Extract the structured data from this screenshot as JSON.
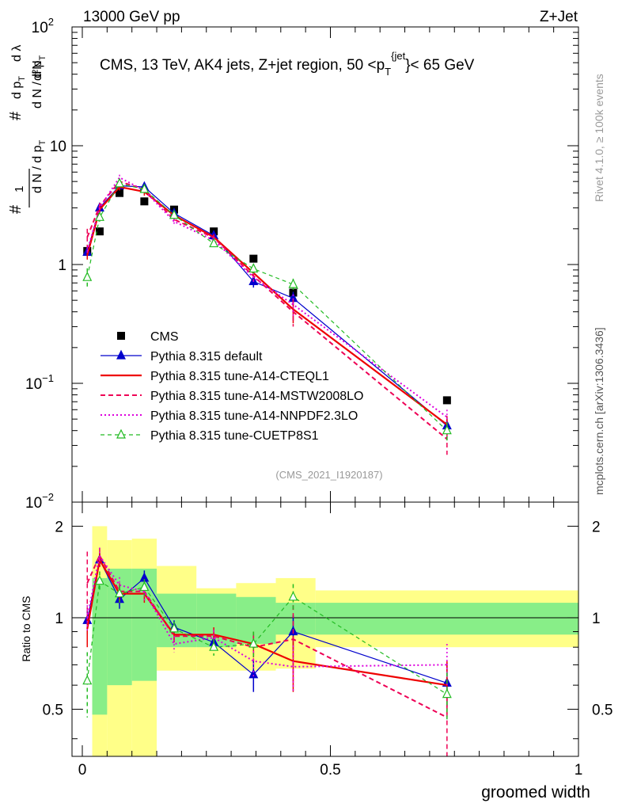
{
  "header": {
    "left": "13000 GeV pp",
    "right": "Z+Jet"
  },
  "side": {
    "rivet": "Rivet 4.1.0, ≥ 100k events",
    "mcplots": "mcplots.cern.ch [arXiv:1306.3436]"
  },
  "chart_data": [
    {
      "type": "line",
      "yscale": "log",
      "title": "CMS, 13 TeV, AK4 jets, Z+jet region, 50 <p_T^{jet}< 65 GeV",
      "watermark": "(CMS_2021_I1920187)",
      "ylabel": "1/dN/dp_T dN/dp_T dlambda",
      "xlim": [
        0,
        1
      ],
      "ylim": [
        0.01,
        100
      ],
      "ytick_labels": [
        "10^{-2}",
        "10^{-1}",
        "1",
        "10",
        "10^{2}"
      ],
      "x": [
        0.01,
        0.035,
        0.075,
        0.125,
        0.185,
        0.265,
        0.345,
        0.425,
        0.735
      ],
      "series": [
        {
          "name": "CMS",
          "color": "#000000",
          "values": [
            1.3,
            1.9,
            4.0,
            3.4,
            2.9,
            1.9,
            1.12,
            0.58,
            0.072
          ]
        },
        {
          "name": "Pythia 8.315 default",
          "color": "#0000cc",
          "values": [
            1.27,
            3.0,
            4.6,
            4.5,
            2.7,
            1.75,
            0.72,
            0.52,
            0.044
          ],
          "errors": [
            0.1,
            0.2,
            0.3,
            0.3,
            0.15,
            0.1,
            0.08,
            0.07,
            0.007
          ]
        },
        {
          "name": "Pythia 8.315 tune-A14-CTEQL1",
          "color": "#ee0000",
          "values": [
            1.2,
            2.9,
            4.5,
            4.1,
            2.6,
            1.7,
            0.85,
            0.42,
            0.045
          ],
          "errors": [
            0.1,
            0.2,
            0.3,
            0.3,
            0.15,
            0.1,
            0.08,
            0.1,
            0.008
          ]
        },
        {
          "name": "Pythia 8.315 tune-A14-MSTW2008LO",
          "color": "#ee0055",
          "values": [
            1.7,
            3.1,
            5.0,
            4.3,
            2.4,
            1.68,
            0.8,
            0.4,
            0.034
          ],
          "errors": [
            0.3,
            0.2,
            0.3,
            0.3,
            0.15,
            0.1,
            0.08,
            0.1,
            0.009
          ]
        },
        {
          "name": "Pythia 8.315 tune-A14-NNPDF2.3LO",
          "color": "#dd00dd",
          "values": [
            1.3,
            3.0,
            5.4,
            4.2,
            2.3,
            1.6,
            0.78,
            0.46,
            0.052
          ],
          "errors": [
            0.1,
            0.2,
            0.3,
            0.3,
            0.15,
            0.1,
            0.08,
            0.1,
            0.008
          ]
        },
        {
          "name": "Pythia 8.315 tune-CUETP8S1",
          "color": "#22bb22",
          "values": [
            0.78,
            2.5,
            4.8,
            4.3,
            2.6,
            1.5,
            0.92,
            0.68,
            0.04
          ],
          "errors": [
            0.15,
            0.2,
            0.3,
            0.3,
            0.15,
            0.1,
            0.08,
            0.08,
            0.007
          ]
        }
      ]
    },
    {
      "type": "line",
      "ylabel": "Ratio to CMS",
      "xlabel": "groomed width",
      "xlim": [
        0,
        1
      ],
      "ylim": [
        0.35,
        2.4
      ],
      "ytick_labels": [
        "0.5",
        "1",
        "2"
      ],
      "xtick_labels": [
        "0",
        "0.5",
        "1"
      ],
      "bin_edges": [
        0.02,
        0.05,
        0.1,
        0.15,
        0.23,
        0.31,
        0.39,
        0.47,
        1.0
      ],
      "band_inner_lo": [
        0.48,
        0.6,
        0.62,
        0.8,
        0.8,
        0.82,
        0.88,
        0.88
      ],
      "band_inner_hi": [
        1.35,
        1.45,
        1.45,
        1.2,
        1.2,
        1.17,
        1.12,
        1.12
      ],
      "band_outer_lo": [
        0.3,
        0.3,
        0.3,
        0.67,
        0.67,
        0.67,
        0.68,
        0.8
      ],
      "band_outer_hi": [
        2.0,
        1.8,
        1.82,
        1.48,
        1.25,
        1.3,
        1.35,
        1.23
      ],
      "x": [
        0.01,
        0.035,
        0.075,
        0.125,
        0.185,
        0.265,
        0.345,
        0.425,
        0.735
      ],
      "series": [
        {
          "name": "Pythia 8.315 default",
          "color": "#0000cc",
          "values": [
            0.98,
            1.55,
            1.15,
            1.35,
            0.93,
            0.83,
            0.65,
            0.9,
            0.61
          ],
          "errors": [
            0.1,
            0.08,
            0.08,
            0.08,
            0.05,
            0.05,
            0.08,
            0.12,
            0.1
          ]
        },
        {
          "name": "Pythia 8.315 tune-A14-CTEQL1",
          "color": "#ee0000",
          "values": [
            0.92,
            1.55,
            1.2,
            1.2,
            0.88,
            0.88,
            0.82,
            0.72,
            0.6
          ],
          "errors": [
            0.12,
            0.08,
            0.08,
            0.08,
            0.05,
            0.05,
            0.08,
            0.15,
            0.12
          ]
        },
        {
          "name": "Pythia 8.315 tune-A14-MSTW2008LO",
          "color": "#ee0055",
          "values": [
            1.3,
            1.6,
            1.22,
            1.22,
            0.87,
            0.87,
            0.8,
            0.85,
            0.47
          ],
          "errors": [
            0.35,
            0.1,
            0.08,
            0.08,
            0.05,
            0.05,
            0.08,
            0.25,
            0.15
          ]
        },
        {
          "name": "Pythia 8.315 tune-A14-NNPDF2.3LO",
          "color": "#dd00dd",
          "values": [
            1.0,
            1.6,
            1.28,
            1.22,
            0.82,
            0.86,
            0.72,
            0.69,
            0.7
          ],
          "errors": [
            0.1,
            0.1,
            0.08,
            0.08,
            0.05,
            0.05,
            0.08,
            0.12,
            0.12
          ]
        },
        {
          "name": "Pythia 8.315 tune-CUETP8S1",
          "color": "#22bb22",
          "values": [
            0.62,
            1.32,
            1.2,
            1.26,
            0.92,
            0.8,
            0.82,
            1.17,
            0.56
          ],
          "errors": [
            0.15,
            0.1,
            0.08,
            0.08,
            0.05,
            0.05,
            0.08,
            0.12,
            0.1
          ]
        }
      ]
    }
  ]
}
